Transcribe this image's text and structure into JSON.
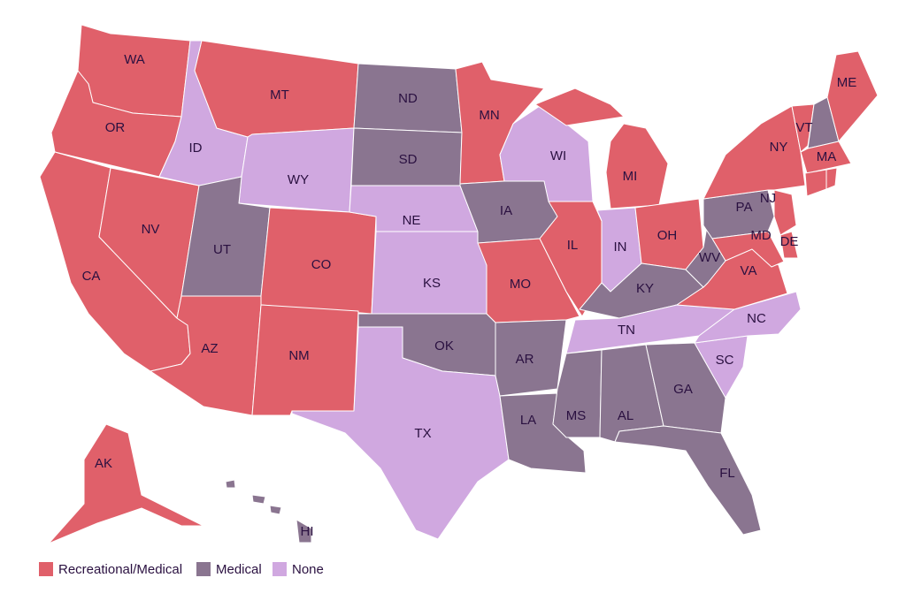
{
  "legend": [
    {
      "label": "Recreational/Medical",
      "color": "#e0606a"
    },
    {
      "label": "Medical",
      "color": "#8a7590"
    },
    {
      "label": "None",
      "color": "#d0a8e0"
    }
  ],
  "states": [
    {
      "label": "WA",
      "status": "Recreational/Medical"
    },
    {
      "label": "OR",
      "status": "Recreational/Medical"
    },
    {
      "label": "CA",
      "status": "Recreational/Medical"
    },
    {
      "label": "NV",
      "status": "Recreational/Medical"
    },
    {
      "label": "ID",
      "status": "None"
    },
    {
      "label": "MT",
      "status": "Recreational/Medical"
    },
    {
      "label": "WY",
      "status": "None"
    },
    {
      "label": "UT",
      "status": "Medical"
    },
    {
      "label": "CO",
      "status": "Recreational/Medical"
    },
    {
      "label": "AZ",
      "status": "Recreational/Medical"
    },
    {
      "label": "NM",
      "status": "Recreational/Medical"
    },
    {
      "label": "ND",
      "status": "Medical"
    },
    {
      "label": "SD",
      "status": "Medical"
    },
    {
      "label": "NE",
      "status": "None"
    },
    {
      "label": "KS",
      "status": "None"
    },
    {
      "label": "OK",
      "status": "Medical"
    },
    {
      "label": "TX",
      "status": "None"
    },
    {
      "label": "MN",
      "status": "Recreational/Medical"
    },
    {
      "label": "IA",
      "status": "Medical"
    },
    {
      "label": "MO",
      "status": "Recreational/Medical"
    },
    {
      "label": "AR",
      "status": "Medical"
    },
    {
      "label": "LA",
      "status": "Medical"
    },
    {
      "label": "WI",
      "status": "None"
    },
    {
      "label": "IL",
      "status": "Recreational/Medical"
    },
    {
      "label": "MI",
      "status": "Recreational/Medical"
    },
    {
      "label": "IN",
      "status": "None"
    },
    {
      "label": "OH",
      "status": "Recreational/Medical"
    },
    {
      "label": "KY",
      "status": "Medical"
    },
    {
      "label": "TN",
      "status": "None"
    },
    {
      "label": "MS",
      "status": "Medical"
    },
    {
      "label": "AL",
      "status": "Medical"
    },
    {
      "label": "GA",
      "status": "Medical"
    },
    {
      "label": "FL",
      "status": "Medical"
    },
    {
      "label": "SC",
      "status": "None"
    },
    {
      "label": "NC",
      "status": "None"
    },
    {
      "label": "VA",
      "status": "Recreational/Medical"
    },
    {
      "label": "WV",
      "status": "Medical"
    },
    {
      "label": "PA",
      "status": "Medical"
    },
    {
      "label": "NY",
      "status": "Recreational/Medical"
    },
    {
      "label": "NJ",
      "status": "Recreational/Medical"
    },
    {
      "label": "DE",
      "status": "Recreational/Medical"
    },
    {
      "label": "MD",
      "status": "Recreational/Medical"
    },
    {
      "label": "VT",
      "status": "Recreational/Medical"
    },
    {
      "label": null,
      "status": "Medical"
    },
    {
      "label": "MA",
      "status": "Recreational/Medical"
    },
    {
      "label": null,
      "status": "Recreational/Medical"
    },
    {
      "label": null,
      "status": "Recreational/Medical"
    },
    {
      "label": "ME",
      "status": "Recreational/Medical"
    },
    {
      "label": "AK",
      "status": "Recreational/Medical"
    },
    {
      "label": "HI",
      "status": "Medical"
    }
  ]
}
